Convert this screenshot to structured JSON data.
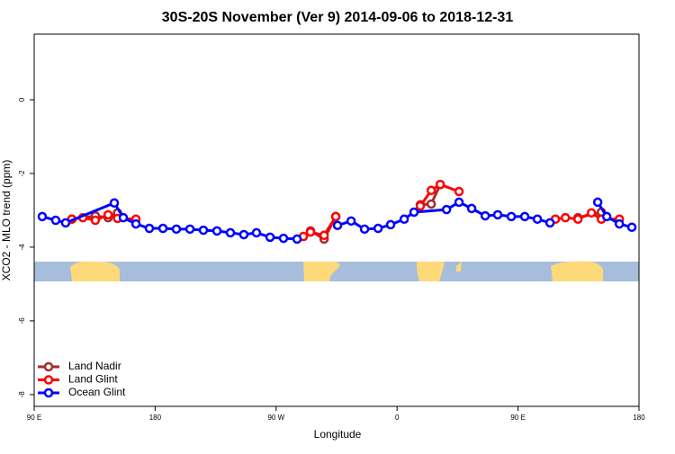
{
  "chart_data": {
    "type": "line",
    "title": "30S-20S November (Ver 9)   2014-09-06 to 2018-12-31",
    "x_label": "Longitude",
    "y_label": "XCO2 - MLO trend (ppm)",
    "xlim": [
      90,
      540
    ],
    "xticks": [
      {
        "value": 90,
        "label": "90 E"
      },
      180,
      {
        "value": 270,
        "label": "90 W"
      },
      {
        "value": 360,
        "label": "0"
      },
      {
        "value": 450,
        "label": "90 E"
      },
      {
        "value": 540,
        "label": "180"
      }
    ],
    "ylim": [
      -8.32,
      1.78
    ],
    "yticks": [
      0,
      -2,
      -4,
      -6,
      -8
    ],
    "legend": "bottom-left",
    "series": [
      {
        "name": "Land Nadir",
        "color": "#a52a2a",
        "x": [
          118,
          135.5,
          145,
          152,
          null,
          295.6,
          305.7,
          314.4,
          null,
          377.3,
          385.4,
          392.1,
          null,
          494.6,
          512
        ],
        "values": [
          -3.24,
          -3.15,
          -3.2,
          -3.07,
          null,
          -3.56,
          -3.78,
          -3.17,
          null,
          -2.85,
          -2.83,
          -2.3,
          null,
          -3.2,
          -3.05
        ]
      },
      {
        "name": "Land Glint",
        "color": "#ff0000",
        "x": [
          118,
          126.2,
          135.5,
          145,
          152,
          165.7,
          null,
          290.3,
          295.6,
          305.7,
          314.4,
          null,
          377.3,
          385.4,
          392.1,
          406.1,
          null,
          477.8,
          485.2,
          494.6,
          504.6,
          512,
          525.4
        ],
        "values": [
          -3.24,
          -3.2,
          -3.27,
          -3.12,
          -3.22,
          -3.24,
          null,
          -3.71,
          -3.59,
          -3.68,
          -3.17,
          null,
          -2.88,
          -2.46,
          -2.3,
          -2.49,
          null,
          -3.24,
          -3.2,
          -3.24,
          -3.07,
          -3.24,
          -3.24
        ]
      },
      {
        "name": "Ocean Glint",
        "color": "#0000ff",
        "x": [
          96,
          106,
          113.4,
          149.6,
          156.3,
          165.7,
          175.7,
          185.8,
          195.8,
          205.9,
          215.9,
          226,
          236,
          246,
          255.4,
          265.5,
          275.5,
          285.6,
          null,
          315.7,
          325.8,
          335.8,
          345.9,
          355.2,
          365.3,
          372.6,
          396.8,
          406.1,
          415.5,
          425.6,
          434.9,
          445,
          455,
          464.4,
          473.8,
          null,
          509.3,
          516,
          525.4,
          534.7
        ],
        "values": [
          -3.17,
          -3.27,
          -3.34,
          -2.8,
          -3.2,
          -3.37,
          -3.49,
          -3.49,
          -3.51,
          -3.51,
          -3.54,
          -3.56,
          -3.61,
          -3.66,
          -3.61,
          -3.73,
          -3.76,
          -3.78,
          null,
          -3.41,
          -3.29,
          -3.51,
          -3.49,
          -3.39,
          -3.24,
          -3.05,
          -2.98,
          -2.78,
          -2.95,
          -3.15,
          -3.12,
          -3.17,
          -3.17,
          -3.24,
          -3.34,
          null,
          -2.78,
          -3.17,
          -3.37,
          -3.46
        ]
      }
    ]
  }
}
